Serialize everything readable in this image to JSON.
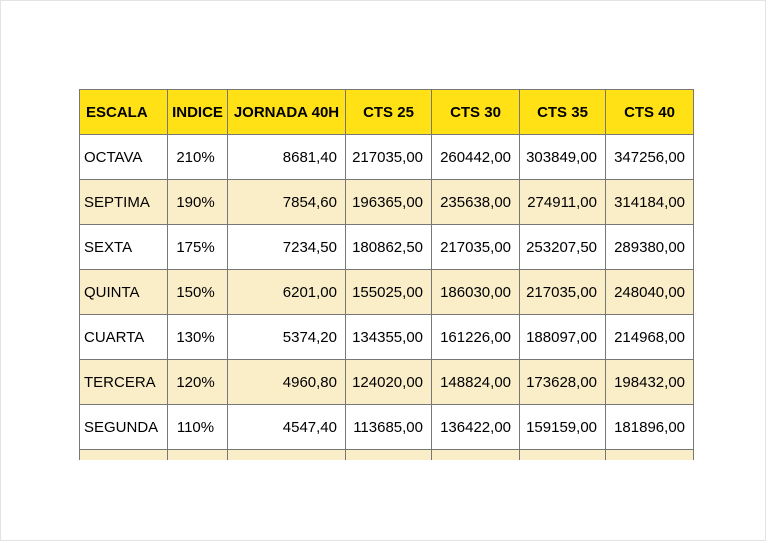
{
  "colors": {
    "header_bg": "#ffe115",
    "row_bg": "#ffffff",
    "row_alt_bg": "#faeec9",
    "grid_border": "#777777",
    "page_border": "#e3e3e3"
  },
  "table": {
    "columns": [
      "ESCALA",
      "INDICE",
      "JORNADA 40H",
      "CTS 25",
      "CTS 30",
      "CTS 35",
      "CTS 40"
    ],
    "rows": [
      [
        "OCTAVA",
        "210%",
        "8681,40",
        "217035,00",
        "260442,00",
        "303849,00",
        "347256,00"
      ],
      [
        "SEPTIMA",
        "190%",
        "7854,60",
        "196365,00",
        "235638,00",
        "274911,00",
        "314184,00"
      ],
      [
        "SEXTA",
        "175%",
        "7234,50",
        "180862,50",
        "217035,00",
        "253207,50",
        "289380,00"
      ],
      [
        "QUINTA",
        "150%",
        "6201,00",
        "155025,00",
        "186030,00",
        "217035,00",
        "248040,00"
      ],
      [
        "CUARTA",
        "130%",
        "5374,20",
        "134355,00",
        "161226,00",
        "188097,00",
        "214968,00"
      ],
      [
        "TERCERA",
        "120%",
        "4960,80",
        "124020,00",
        "148824,00",
        "173628,00",
        "198432,00"
      ],
      [
        "SEGUNDA",
        "110%",
        "4547,40",
        "113685,00",
        "136422,00",
        "159159,00",
        "181896,00"
      ]
    ]
  }
}
